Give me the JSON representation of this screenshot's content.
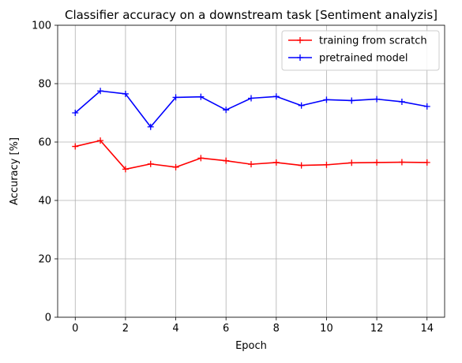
{
  "chart_data": {
    "type": "line",
    "title": "Classifier accuracy on a downstream task [Sentiment analyzis]",
    "xlabel": "Epoch",
    "ylabel": "Accuracy [%]",
    "xlim": [
      -0.7,
      14.7
    ],
    "ylim": [
      0,
      100
    ],
    "xticks": [
      0,
      2,
      4,
      6,
      8,
      10,
      12,
      14
    ],
    "yticks": [
      0,
      20,
      40,
      60,
      80,
      100
    ],
    "grid": true,
    "legend_position": "top-right",
    "x": [
      0,
      1,
      2,
      3,
      4,
      5,
      6,
      7,
      8,
      9,
      10,
      11,
      12,
      13,
      14
    ],
    "series": [
      {
        "name": "training from scratch",
        "color": "#ff0000",
        "marker": "plus",
        "values": [
          58.5,
          60.5,
          50.7,
          52.5,
          51.4,
          54.5,
          53.6,
          52.4,
          53.0,
          52.0,
          52.2,
          52.9,
          53.0,
          53.1,
          53.0
        ]
      },
      {
        "name": "pretrained model",
        "color": "#0000ff",
        "marker": "plus",
        "values": [
          70.0,
          77.5,
          76.5,
          65.2,
          75.3,
          75.5,
          71.0,
          75.0,
          75.6,
          72.5,
          74.5,
          74.2,
          74.7,
          73.8,
          72.2
        ]
      }
    ]
  }
}
